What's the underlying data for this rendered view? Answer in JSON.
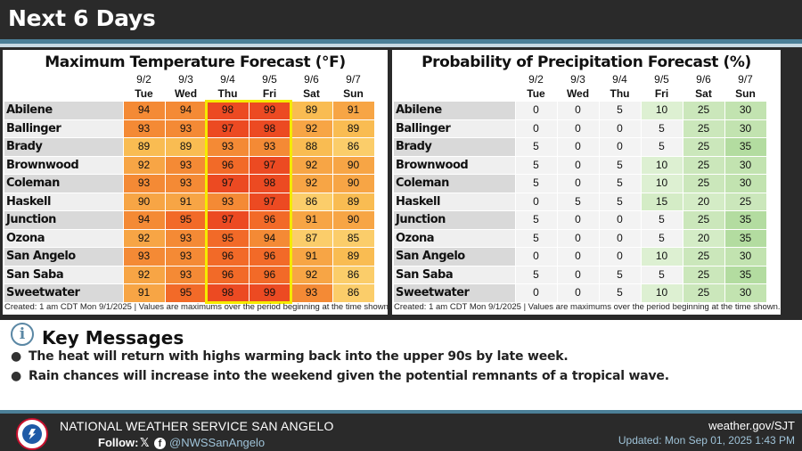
{
  "title": "Next 6 Days",
  "temp_table": {
    "title": "Maximum Temperature Forecast (°F)",
    "dates": [
      "9/2",
      "9/3",
      "9/4",
      "9/5",
      "9/6",
      "9/7"
    ],
    "days": [
      "Tue",
      "Wed",
      "Thu",
      "Fri",
      "Sat",
      "Sun"
    ],
    "rows": [
      {
        "city": "Abilene",
        "values": [
          94,
          94,
          98,
          99,
          89,
          91
        ]
      },
      {
        "city": "Ballinger",
        "values": [
          93,
          93,
          97,
          98,
          92,
          89
        ]
      },
      {
        "city": "Brady",
        "values": [
          89,
          89,
          93,
          93,
          88,
          86
        ]
      },
      {
        "city": "Brownwood",
        "values": [
          92,
          93,
          96,
          97,
          92,
          90
        ]
      },
      {
        "city": "Coleman",
        "values": [
          93,
          93,
          97,
          98,
          92,
          90
        ]
      },
      {
        "city": "Haskell",
        "values": [
          90,
          91,
          93,
          97,
          86,
          89
        ]
      },
      {
        "city": "Junction",
        "values": [
          94,
          95,
          97,
          96,
          91,
          90
        ]
      },
      {
        "city": "Ozona",
        "values": [
          92,
          93,
          95,
          94,
          87,
          85
        ]
      },
      {
        "city": "San Angelo",
        "values": [
          93,
          93,
          96,
          96,
          91,
          89
        ]
      },
      {
        "city": "San Saba",
        "values": [
          92,
          93,
          96,
          96,
          92,
          86
        ]
      },
      {
        "city": "Sweetwater",
        "values": [
          91,
          95,
          98,
          99,
          93,
          86
        ]
      }
    ],
    "footnote": "Created: 1 am CDT Mon 9/1/2025  |  Values are maximums over the period beginning at the time shown."
  },
  "pop_table": {
    "title": "Probability of Precipitation Forecast (%)",
    "dates": [
      "9/2",
      "9/3",
      "9/4",
      "9/5",
      "9/6",
      "9/7"
    ],
    "days": [
      "Tue",
      "Wed",
      "Thu",
      "Fri",
      "Sat",
      "Sun"
    ],
    "rows": [
      {
        "city": "Abilene",
        "values": [
          0,
          0,
          5,
          10,
          25,
          30
        ]
      },
      {
        "city": "Ballinger",
        "values": [
          0,
          0,
          0,
          5,
          25,
          30
        ]
      },
      {
        "city": "Brady",
        "values": [
          5,
          0,
          0,
          5,
          25,
          35
        ]
      },
      {
        "city": "Brownwood",
        "values": [
          5,
          0,
          5,
          10,
          25,
          30
        ]
      },
      {
        "city": "Coleman",
        "values": [
          5,
          0,
          5,
          10,
          25,
          30
        ]
      },
      {
        "city": "Haskell",
        "values": [
          0,
          5,
          5,
          15,
          20,
          25
        ]
      },
      {
        "city": "Junction",
        "values": [
          5,
          0,
          0,
          5,
          25,
          35
        ]
      },
      {
        "city": "Ozona",
        "values": [
          5,
          0,
          0,
          5,
          20,
          35
        ]
      },
      {
        "city": "San Angelo",
        "values": [
          0,
          0,
          0,
          10,
          25,
          30
        ]
      },
      {
        "city": "San Saba",
        "values": [
          5,
          0,
          5,
          5,
          25,
          35
        ]
      },
      {
        "city": "Sweetwater",
        "values": [
          0,
          0,
          5,
          10,
          25,
          30
        ]
      }
    ],
    "footnote": "Created: 1 am CDT Mon 9/1/2025  |  Values are maximums over the period beginning at the time shown."
  },
  "key_messages": {
    "title": "Key Messages",
    "bullets": [
      "The heat will return with highs warming back into the upper 90s by late week.",
      "Rain chances will increase into the weekend given the potential remnants of a tropical wave."
    ]
  },
  "footer": {
    "office": "NATIONAL WEATHER SERVICE SAN ANGELO",
    "follow_label": "Follow:",
    "handle": "@NWSSanAngelo",
    "website": "weather.gov/SJT",
    "updated": "Updated: Mon Sep 01, 2025 1:43 PM"
  },
  "colors": {
    "header_bg": "#2a2a2a",
    "accent_blue": "#4b7f97",
    "highlight_box": "#f5ea00"
  }
}
